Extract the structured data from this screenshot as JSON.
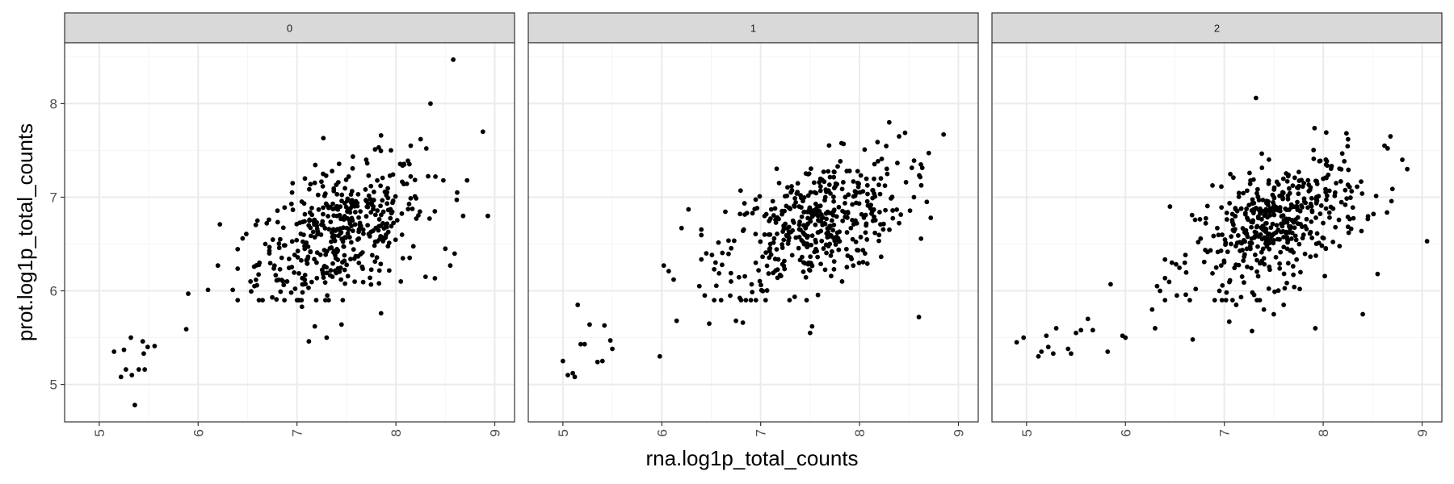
{
  "chart_data": {
    "type": "scatter",
    "facet_labels": [
      "0",
      "1",
      "2"
    ],
    "xlabel": "rna.log1p_total_counts",
    "ylabel": "prot.log1p_total_counts",
    "xlim": [
      4.65,
      9.2
    ],
    "ylim": [
      4.6,
      8.65
    ],
    "x_ticks": [
      5,
      6,
      7,
      8,
      9
    ],
    "y_ticks": [
      5,
      6,
      7,
      8
    ],
    "grid": true,
    "colors": {
      "point": "#000000",
      "strip_bg": "#d9d9d9",
      "panel_border": "#333333",
      "grid_major": "#ebebeb",
      "grid_minor": "#f5f5f5"
    },
    "panels": [
      {
        "label": "0",
        "points": [
          [
            5.15,
            5.35
          ],
          [
            5.22,
            5.08
          ],
          [
            5.25,
            5.37
          ],
          [
            5.27,
            5.16
          ],
          [
            5.32,
            5.5
          ],
          [
            5.33,
            5.1
          ],
          [
            5.36,
            4.78
          ],
          [
            5.4,
            5.16
          ],
          [
            5.44,
            5.46
          ],
          [
            5.45,
            5.33
          ],
          [
            5.46,
            5.16
          ],
          [
            5.49,
            5.4
          ],
          [
            5.56,
            5.41
          ],
          [
            5.88,
            5.59
          ],
          [
            5.9,
            5.97
          ],
          [
            6.1,
            6.01
          ],
          [
            6.2,
            6.27
          ],
          [
            6.22,
            6.71
          ],
          [
            6.35,
            6.01
          ],
          [
            6.45,
            6.56
          ],
          [
            6.53,
            6.1
          ],
          [
            6.57,
            6.05
          ],
          [
            6.6,
            6.75
          ],
          [
            6.62,
            6.3
          ],
          [
            6.68,
            6.5
          ],
          [
            6.72,
            6.4
          ],
          [
            6.75,
            5.93
          ],
          [
            6.83,
            6.55
          ],
          [
            6.9,
            6.1
          ],
          [
            6.95,
            7.05
          ],
          [
            7.0,
            5.9
          ],
          [
            7.05,
            5.83
          ],
          [
            7.08,
            7.2
          ],
          [
            7.12,
            5.46
          ],
          [
            7.18,
            5.62
          ],
          [
            7.3,
            5.5
          ],
          [
            7.45,
            5.64
          ],
          [
            7.85,
            5.76
          ],
          [
            8.05,
            6.1
          ],
          [
            8.3,
            6.15
          ],
          [
            8.35,
            8.0
          ],
          [
            8.5,
            6.45
          ],
          [
            8.55,
            6.27
          ],
          [
            8.58,
            8.47
          ],
          [
            8.62,
            7.05
          ],
          [
            8.68,
            6.8
          ],
          [
            8.72,
            7.18
          ],
          [
            8.88,
            7.7
          ],
          [
            8.93,
            6.8
          ],
          [
            8.48,
            7.18
          ],
          [
            8.4,
            7.22
          ],
          [
            8.25,
            7.62
          ],
          [
            8.15,
            7.55
          ],
          [
            7.95,
            7.5
          ],
          [
            7.85,
            7.66
          ],
          [
            7.7,
            7.4
          ]
        ]
      },
      {
        "label": "1",
        "points": [
          [
            5.0,
            5.25
          ],
          [
            5.05,
            5.1
          ],
          [
            5.1,
            5.12
          ],
          [
            5.12,
            5.08
          ],
          [
            5.15,
            5.85
          ],
          [
            5.18,
            5.43
          ],
          [
            5.22,
            5.43
          ],
          [
            5.27,
            5.64
          ],
          [
            5.35,
            5.24
          ],
          [
            5.4,
            5.25
          ],
          [
            5.42,
            5.63
          ],
          [
            5.48,
            5.47
          ],
          [
            5.5,
            5.38
          ],
          [
            5.98,
            5.3
          ],
          [
            6.02,
            6.27
          ],
          [
            6.07,
            6.21
          ],
          [
            6.12,
            6.12
          ],
          [
            6.15,
            5.68
          ],
          [
            6.2,
            6.67
          ],
          [
            6.27,
            6.87
          ],
          [
            6.38,
            6.05
          ],
          [
            6.45,
            6.4
          ],
          [
            6.48,
            5.65
          ],
          [
            6.53,
            6.23
          ],
          [
            6.6,
            5.9
          ],
          [
            6.7,
            6.1
          ],
          [
            6.75,
            5.68
          ],
          [
            6.82,
            5.66
          ],
          [
            6.85,
            5.9
          ],
          [
            6.95,
            6.3
          ],
          [
            7.05,
            5.9
          ],
          [
            7.5,
            5.55
          ],
          [
            7.52,
            5.62
          ],
          [
            8.3,
            7.8
          ],
          [
            8.4,
            7.65
          ],
          [
            8.6,
            5.72
          ],
          [
            8.62,
            7.35
          ],
          [
            8.68,
            6.95
          ],
          [
            8.72,
            6.78
          ],
          [
            8.85,
            7.67
          ],
          [
            8.55,
            7.0
          ]
        ]
      },
      {
        "label": "2",
        "points": [
          [
            4.9,
            5.45
          ],
          [
            4.97,
            5.5
          ],
          [
            5.12,
            5.3
          ],
          [
            5.15,
            5.35
          ],
          [
            5.2,
            5.52
          ],
          [
            5.22,
            5.4
          ],
          [
            5.27,
            5.33
          ],
          [
            5.3,
            5.6
          ],
          [
            5.42,
            5.38
          ],
          [
            5.45,
            5.33
          ],
          [
            5.5,
            5.55
          ],
          [
            5.55,
            5.58
          ],
          [
            5.62,
            5.7
          ],
          [
            5.67,
            5.58
          ],
          [
            5.82,
            5.35
          ],
          [
            5.85,
            6.07
          ],
          [
            5.97,
            5.52
          ],
          [
            6.0,
            5.5
          ],
          [
            6.27,
            5.8
          ],
          [
            6.3,
            5.6
          ],
          [
            6.32,
            6.05
          ],
          [
            6.35,
            6.0
          ],
          [
            6.45,
            6.9
          ],
          [
            6.52,
            5.95
          ],
          [
            6.6,
            6.3
          ],
          [
            6.68,
            5.48
          ],
          [
            6.95,
            6.0
          ],
          [
            7.05,
            5.67
          ],
          [
            7.12,
            5.85
          ],
          [
            7.28,
            5.57
          ],
          [
            7.32,
            8.06
          ],
          [
            7.4,
            5.8
          ],
          [
            7.5,
            5.75
          ],
          [
            7.6,
            5.85
          ],
          [
            7.92,
            5.6
          ],
          [
            8.4,
            5.75
          ],
          [
            8.55,
            6.18
          ],
          [
            8.62,
            7.55
          ],
          [
            8.68,
            7.65
          ],
          [
            8.8,
            7.4
          ],
          [
            8.85,
            7.3
          ],
          [
            9.05,
            6.53
          ]
        ]
      }
    ]
  }
}
